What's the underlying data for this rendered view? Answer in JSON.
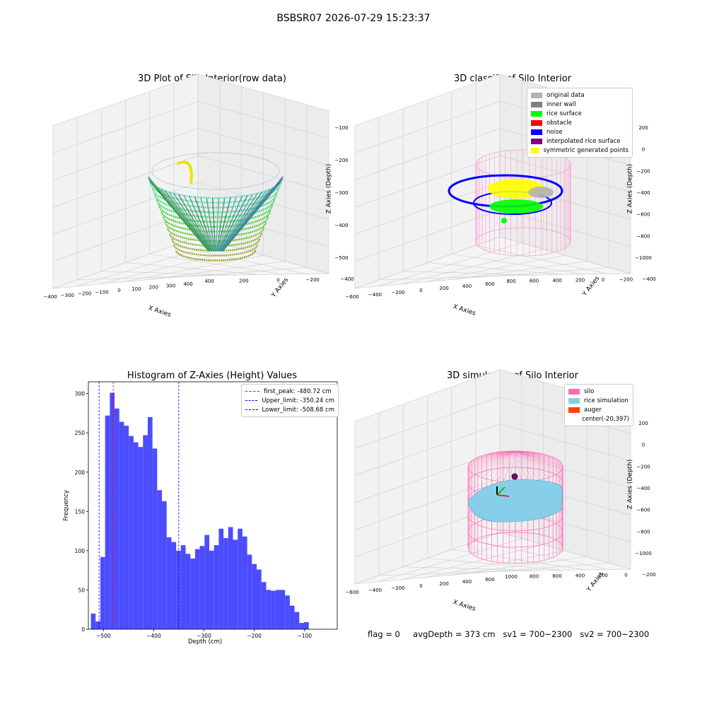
{
  "suptitle": "BSBSR07 2026-07-29 15:23:37",
  "panels": {
    "raw": {
      "title": "3D Plot of Silo Interior(row data)",
      "xlabel": "X Axies",
      "ylabel": "Y Axies",
      "zlabel": "Z Axies (Depth)",
      "xticks": [
        "−400",
        "−300",
        "−200",
        "−100",
        "0",
        "100",
        "200",
        "300",
        "400"
      ],
      "yticks": [
        "−400",
        "−200",
        "0",
        "200",
        "400"
      ],
      "zticks": [
        "−100",
        "−200",
        "−300",
        "−400",
        "−500"
      ]
    },
    "classify": {
      "title": "3D classify of Silo Interior",
      "xlabel": "X Axies",
      "ylabel": "Y Axies",
      "zlabel": "Z Axies (Depth)",
      "xticks": [
        "−600",
        "−400",
        "−200",
        "0",
        "200",
        "400",
        "600"
      ],
      "yticks": [
        "−400",
        "−200",
        "0",
        "200",
        "400",
        "600",
        "800"
      ],
      "zticks": [
        "200",
        "0",
        "−200",
        "−400",
        "−600",
        "−800",
        "−1000"
      ],
      "legend": [
        {
          "label": "original data",
          "color": "#b3b3b3"
        },
        {
          "label": "inner wall",
          "color": "#808080"
        },
        {
          "label": "rice surface",
          "color": "#00ff00"
        },
        {
          "label": "obstacle",
          "color": "#ff0000"
        },
        {
          "label": "noise",
          "color": "#0000ff"
        },
        {
          "label": "interpolated rice surface",
          "color": "#800080"
        },
        {
          "label": "symmetric generated points",
          "color": "#ffff00"
        }
      ]
    },
    "simulation": {
      "title": "3D simulation of Silo Interior",
      "xlabel": "X Axies",
      "ylabel": "Y Axies",
      "zlabel": "Z Axies (Depth)",
      "xticks": [
        "−600",
        "−400",
        "−200",
        "0",
        "200",
        "400",
        "600"
      ],
      "yticks": [
        "−200",
        "0",
        "200",
        "400",
        "600",
        "800",
        "1000"
      ],
      "zticks": [
        "200",
        "0",
        "−200",
        "−400",
        "−600",
        "−800",
        "−1000"
      ],
      "legend": [
        {
          "label": "silo",
          "color": "#ff69b4"
        },
        {
          "label": "rice simulation",
          "color": "#87ceeb"
        },
        {
          "label": "auger",
          "color": "#ff4500"
        },
        {
          "label": "center(-20,397)",
          "color": ""
        }
      ]
    }
  },
  "chart_data": {
    "type": "bar",
    "title": "Histogram of Z-Axies (Height) Values",
    "xlabel": "Depth (cm)",
    "ylabel": "Frequency",
    "xlim": [
      -530,
      -35
    ],
    "ylim": [
      0,
      315
    ],
    "bin_start": -525,
    "bin_width": 9.42,
    "values": [
      20,
      10,
      92,
      272,
      301,
      281,
      264,
      259,
      246,
      238,
      232,
      247,
      270,
      230,
      177,
      163,
      117,
      111,
      100,
      107,
      96,
      90,
      102,
      106,
      120,
      100,
      107,
      128,
      116,
      130,
      114,
      128,
      118,
      95,
      83,
      76,
      60,
      50,
      49,
      50,
      50,
      43,
      30,
      22,
      8,
      9
    ],
    "xticks": [
      -500,
      -400,
      -300,
      -200,
      -100
    ],
    "xticklabels": [
      "−500",
      "−400",
      "−300",
      "−200",
      "−100"
    ],
    "yticks": [
      0,
      50,
      100,
      150,
      200,
      250,
      300
    ],
    "yticklabels": [
      "0",
      "50",
      "100",
      "150",
      "200",
      "250",
      "300"
    ],
    "lines": [
      {
        "label": "first_peak: -480.72 cm",
        "x": -480.72,
        "color": "#ff0000"
      },
      {
        "label": "Upper_limit: -350.24 cm",
        "x": -350.24,
        "color": "#0000ff"
      },
      {
        "label": "Lower_limit: -508.68 cm",
        "x": -508.68,
        "color": "#0000ff"
      }
    ],
    "legend_position": "upper right",
    "bar_color": "#4c4cff"
  },
  "status": {
    "flag": "flag = 0",
    "avg": "avgDepth = 373 cm",
    "sv1": "sv1 = 700~2300",
    "sv2": "sv2 = 700~2300"
  }
}
